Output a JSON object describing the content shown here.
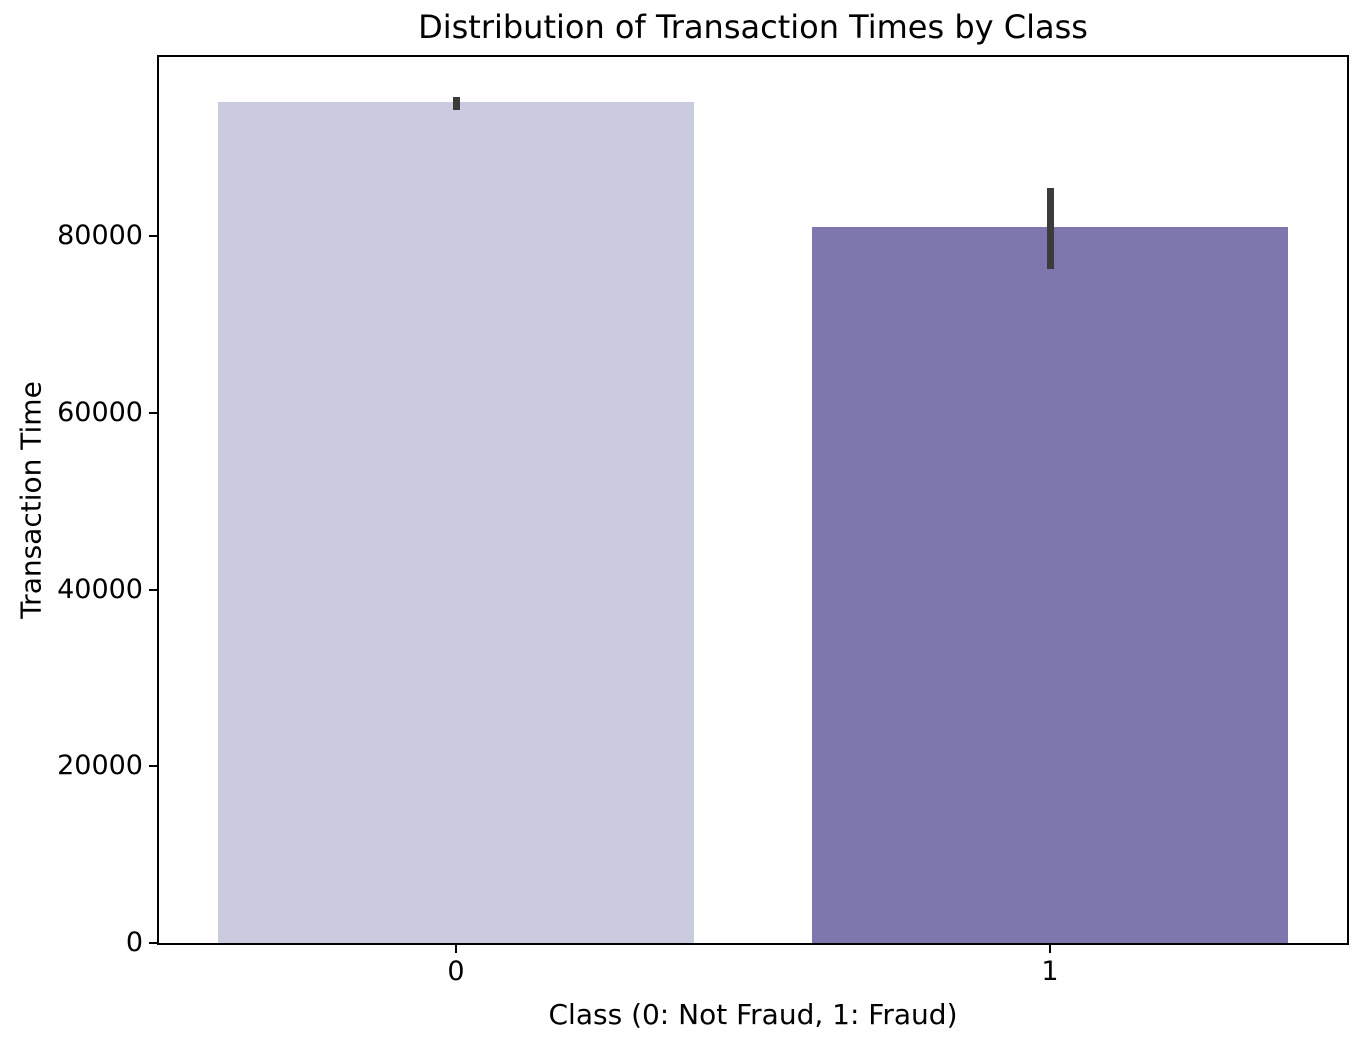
{
  "chart_data": {
    "type": "bar",
    "title": "Distribution of Transaction Times by Class",
    "xlabel": "Class (0: Not Fraud, 1: Fraud)",
    "ylabel": "Transaction Time",
    "categories": [
      "0",
      "1"
    ],
    "values": [
      95200,
      81000
    ],
    "error_bars": [
      {
        "low": 94300,
        "high": 95800
      },
      {
        "low": 76300,
        "high": 85500
      }
    ],
    "bar_colors": [
      "#cacbde",
      "#7d77ad"
    ],
    "error_bar_color": "#3b3b3b",
    "ylim": [
      0,
      100300
    ],
    "yticks": [
      0,
      20000,
      40000,
      60000,
      80000
    ],
    "ytick_labels": [
      "0",
      "20000",
      "40000",
      "60000",
      "80000"
    ],
    "bar_width_fraction": 0.8,
    "grid": false,
    "legend": "none",
    "background_color": "#ffffff",
    "spine_color": "#000000"
  }
}
